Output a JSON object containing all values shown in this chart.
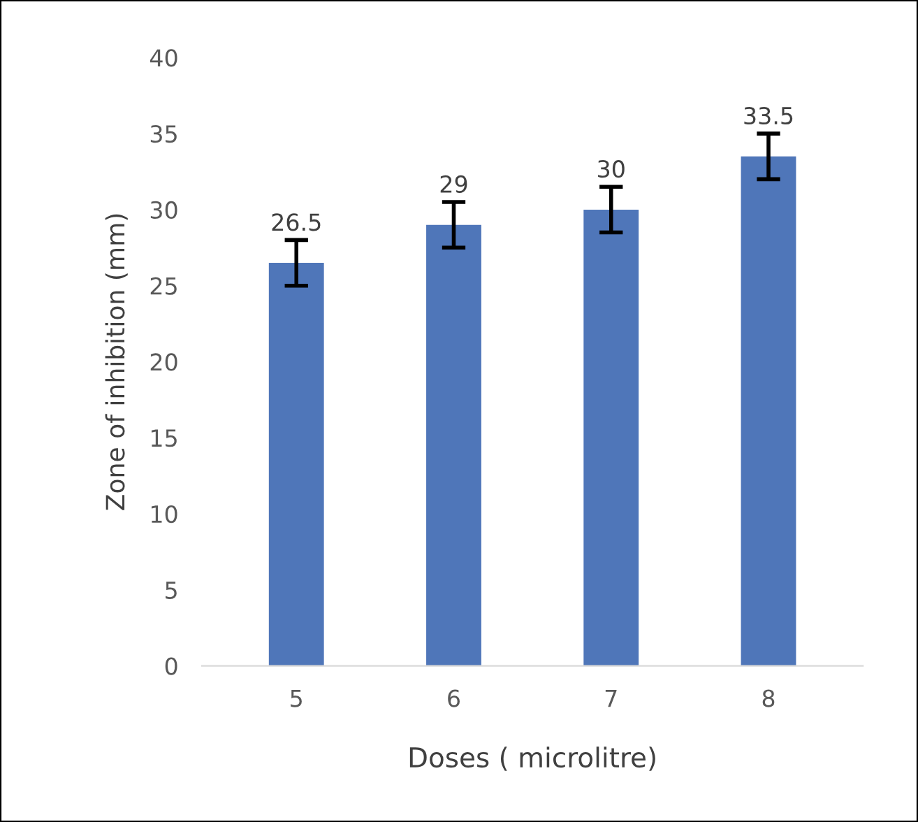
{
  "chart_data": {
    "type": "bar",
    "xlabel": "Doses ( microlitre)",
    "ylabel": "Zone of inhibition (mm)",
    "categories": [
      "5",
      "6",
      "7",
      "8"
    ],
    "values": [
      26.5,
      29,
      30,
      33.5
    ],
    "errors": [
      1.5,
      1.5,
      1.5,
      1.5
    ],
    "color": "#4f76b9",
    "ylim": [
      0,
      40
    ],
    "yticks": [
      0,
      5,
      10,
      15,
      20,
      25,
      30,
      35,
      40
    ],
    "data_labels": true,
    "grid": false,
    "legend": false
  }
}
